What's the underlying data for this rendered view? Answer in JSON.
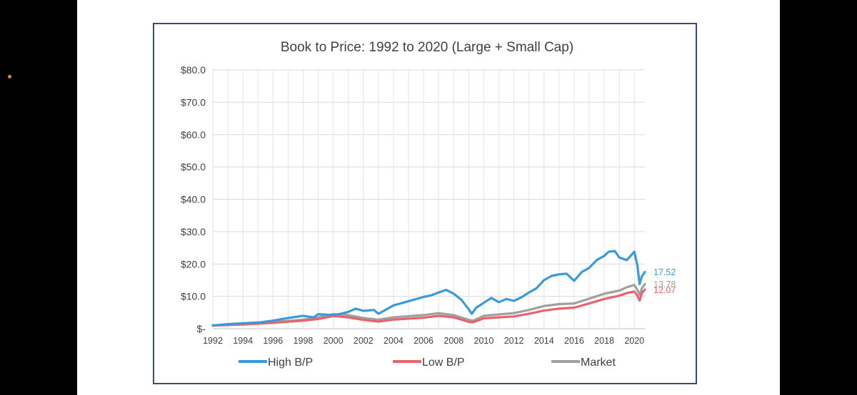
{
  "chart_data": {
    "type": "line",
    "title": "Book to Price: 1992 to 2020 (Large + Small Cap)",
    "xlabel": "",
    "ylabel": "",
    "xlim": [
      1992,
      2020.7
    ],
    "ylim": [
      0,
      80
    ],
    "x_ticks": [
      "1992",
      "1994",
      "1996",
      "1998",
      "2000",
      "2002",
      "2004",
      "2006",
      "2008",
      "2010",
      "2012",
      "2014",
      "2016",
      "2018",
      "2020"
    ],
    "y_ticks": [
      {
        "value": 0,
        "label": "$-"
      },
      {
        "value": 10,
        "label": "$10.0"
      },
      {
        "value": 20,
        "label": "$20.0"
      },
      {
        "value": 30,
        "label": "$30.0"
      },
      {
        "value": 40,
        "label": "$40.0"
      },
      {
        "value": 50,
        "label": "$50.0"
      },
      {
        "value": 60,
        "label": "$60.0"
      },
      {
        "value": 70,
        "label": "$70.0"
      },
      {
        "value": 80,
        "label": "$80.0"
      }
    ],
    "grid": true,
    "legend_position": "bottom",
    "series": [
      {
        "name": "High B/P",
        "color": "#3a9ad9",
        "end_label": "17.52",
        "x": [
          1992,
          1993,
          1994,
          1995,
          1996,
          1997,
          1998,
          1998.7,
          1999,
          2000,
          2000.5,
          2001,
          2001.5,
          2002,
          2002.7,
          2003,
          2004,
          2005,
          2006,
          2006.5,
          2007,
          2007.5,
          2008,
          2008.5,
          2009,
          2009.2,
          2009.5,
          2010,
          2010.5,
          2011,
          2011.5,
          2012,
          2012.5,
          2013,
          2013.5,
          2014,
          2014.5,
          2015,
          2015.5,
          2016,
          2016.5,
          2017,
          2017.5,
          2018,
          2018.3,
          2018.7,
          2019,
          2019.5,
          2020,
          2020.2,
          2020.35,
          2020.5,
          2020.7
        ],
        "values": [
          1.0,
          1.4,
          1.7,
          1.9,
          2.5,
          3.3,
          4.0,
          3.5,
          4.5,
          4.2,
          4.6,
          5.2,
          6.2,
          5.5,
          5.8,
          4.6,
          7.2,
          8.5,
          9.8,
          10.3,
          11.2,
          12.0,
          10.8,
          9.0,
          6.0,
          4.6,
          6.5,
          8.0,
          9.5,
          8.2,
          9.2,
          8.6,
          9.7,
          11.2,
          12.5,
          15.0,
          16.3,
          16.8,
          17.0,
          14.8,
          17.5,
          18.8,
          21.2,
          22.5,
          23.8,
          24.0,
          22.0,
          21.2,
          23.8,
          19.5,
          13.8,
          16.2,
          17.52
        ]
      },
      {
        "name": "Low B/P",
        "color": "#e8636b",
        "end_label": "12.07",
        "x": [
          1992,
          1994,
          1996,
          1998,
          1999,
          2000,
          2001,
          2002,
          2003,
          2004,
          2006,
          2007,
          2008,
          2009,
          2009.3,
          2010,
          2011,
          2012,
          2013,
          2014,
          2015,
          2016,
          2017,
          2018,
          2019,
          2019.5,
          2020,
          2020.2,
          2020.35,
          2020.5,
          2020.7
        ],
        "values": [
          1.0,
          1.3,
          1.8,
          2.5,
          3.0,
          3.9,
          3.5,
          2.7,
          2.2,
          2.8,
          3.4,
          4.0,
          3.5,
          2.1,
          2.0,
          3.2,
          3.5,
          3.8,
          4.6,
          5.6,
          6.2,
          6.5,
          7.8,
          9.2,
          10.2,
          11.0,
          11.5,
          10.2,
          8.7,
          11.0,
          12.07
        ]
      },
      {
        "name": "Market",
        "color": "#a0a0a0",
        "end_label": "13.78",
        "x": [
          1992,
          1994,
          1996,
          1998,
          1999,
          2000,
          2001,
          2002,
          2003,
          2004,
          2006,
          2007,
          2008,
          2009,
          2009.3,
          2010,
          2011,
          2012,
          2013,
          2014,
          2015,
          2016,
          2017,
          2018,
          2019,
          2019.5,
          2020,
          2020.2,
          2020.35,
          2020.5,
          2020.7
        ],
        "values": [
          1.0,
          1.4,
          2.0,
          2.8,
          3.5,
          4.5,
          4.2,
          3.3,
          2.8,
          3.5,
          4.2,
          4.8,
          4.2,
          2.7,
          2.5,
          4.0,
          4.4,
          4.8,
          5.8,
          7.0,
          7.6,
          7.8,
          9.3,
          10.8,
          11.8,
          12.8,
          13.5,
          12.0,
          10.5,
          12.5,
          13.78
        ]
      }
    ]
  }
}
